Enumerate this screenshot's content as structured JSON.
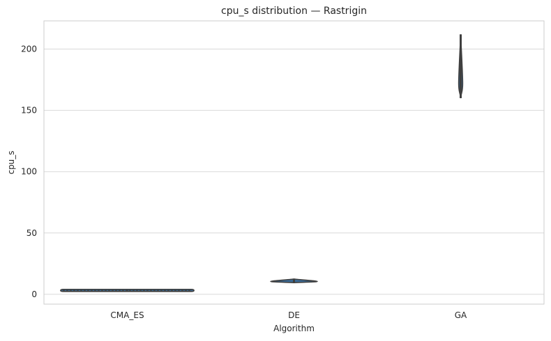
{
  "chart_data": {
    "type": "violin",
    "title": "cpu_s distribution — Rastrigin",
    "xlabel": "Algorithm",
    "ylabel": "cpu_s",
    "categories": [
      "CMA_ES",
      "DE",
      "GA"
    ],
    "yticks": [
      0,
      50,
      100,
      150,
      200
    ],
    "ylim": [
      -8,
      223
    ],
    "grid": "horizontal",
    "colors": {
      "violin_fill": "#3a6a96",
      "violin_edge": "#3f3f3f",
      "grid": "#d9d9d9",
      "frame": "#cccccc"
    },
    "series": [
      {
        "category": "CMA_ES",
        "min": 2.9,
        "max": 3.4,
        "median": 3.1,
        "max_width_fraction": 1.0
      },
      {
        "category": "DE",
        "min": 9.5,
        "max": 12.5,
        "median": 10.5,
        "max_width_fraction": 0.35
      },
      {
        "category": "GA",
        "min": 160,
        "max": 212,
        "median": 172,
        "max_width_fraction": 0.03
      }
    ]
  }
}
